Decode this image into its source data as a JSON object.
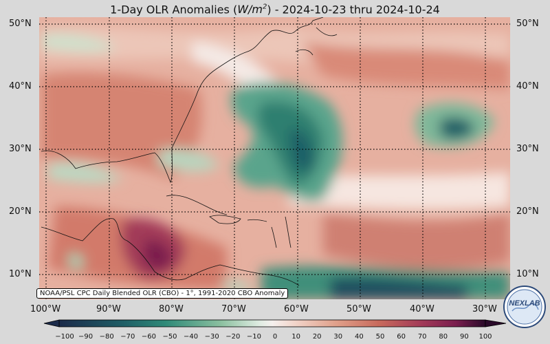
{
  "title": {
    "prefix": "1-Day OLR Anomalies (",
    "unit_main": "W/m",
    "unit_exp": "2",
    "suffix": ") - 2024-10-23 thru 2024-10-24"
  },
  "lat_labels": [
    "50°N",
    "40°N",
    "30°N",
    "20°N",
    "10°N"
  ],
  "lon_labels": [
    "100°W",
    "90°W",
    "80°W",
    "70°W",
    "60°W",
    "50°W",
    "40°W",
    "30°W"
  ],
  "source_note": "NOAA/PSL CPC Daily Blended OLR (CBO) - 1°, 1991-2020 CBO Anomaly",
  "logo_text": "NEXLAB",
  "colorbar": {
    "ticks": [
      "−100",
      "−90",
      "−80",
      "−70",
      "−60",
      "−50",
      "−40",
      "−30",
      "−20",
      "−10",
      "0",
      "10",
      "20",
      "30",
      "40",
      "50",
      "60",
      "70",
      "80",
      "90",
      "100"
    ],
    "colors": {
      "low": "#1b2a4a",
      "mid_low": "#2a7a70",
      "green": "#8cc0a0",
      "neutral": "#f5f0ee",
      "salmon": "#e0a08a",
      "red": "#c86a5c",
      "high": "#7a1e4e",
      "max": "#2a0a2a"
    }
  }
}
